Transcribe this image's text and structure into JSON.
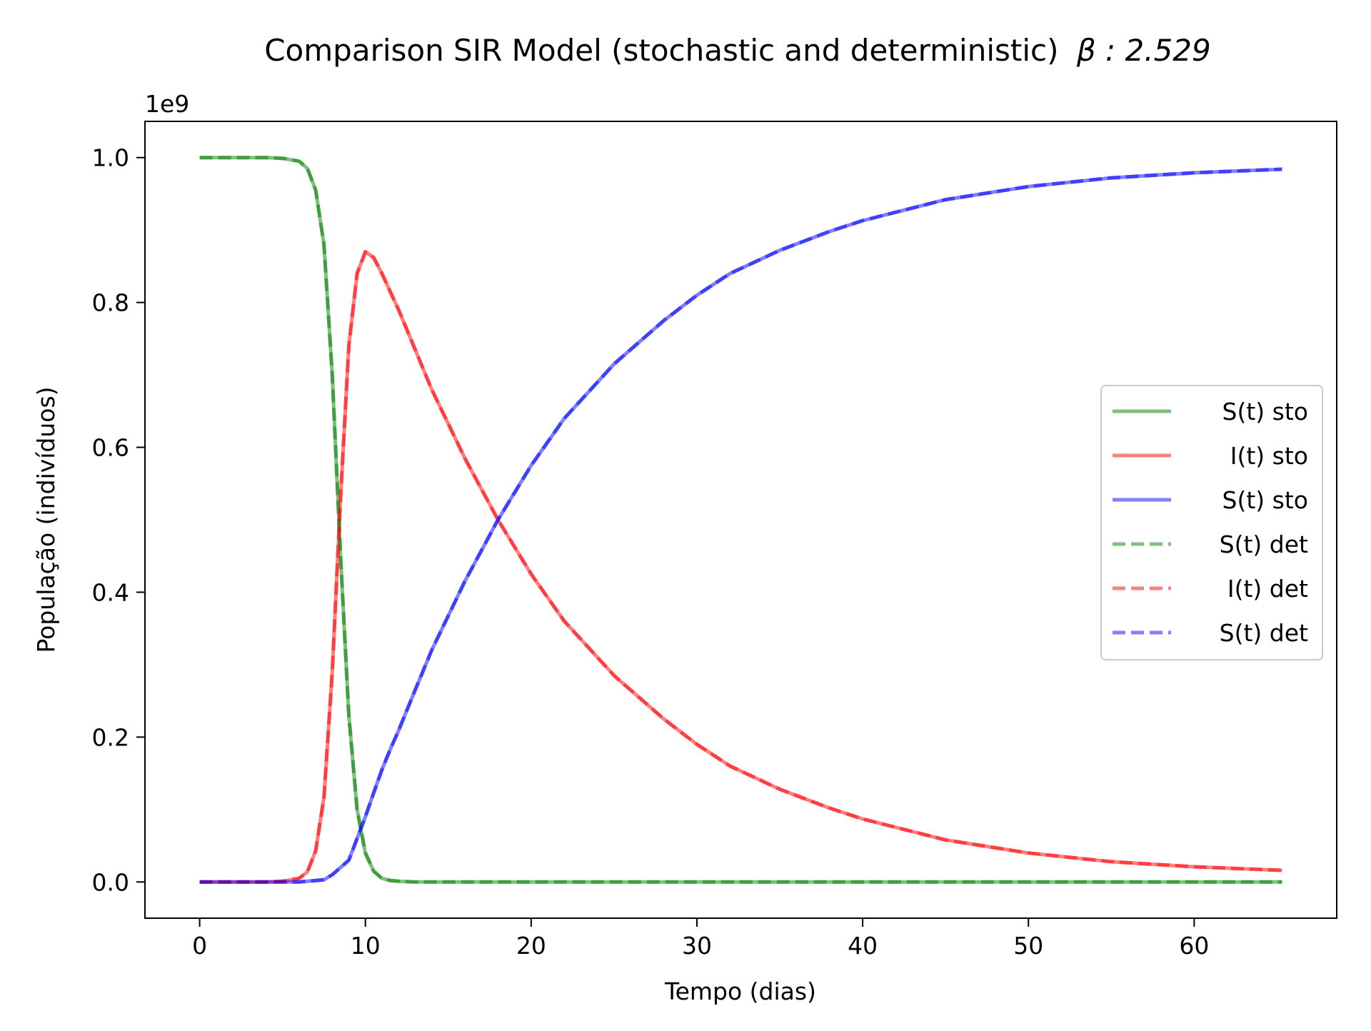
{
  "chart_data": {
    "type": "line",
    "title": "Comparison SIR Model (stochastic and deterministic)",
    "title_math": "β : 2.529",
    "xlabel": "Tempo (dias)",
    "ylabel": "População (indivíduos)",
    "y_offset_label": "1e9",
    "xlim": [
      -3.3,
      68.6
    ],
    "ylim": [
      -0.05,
      1.05
    ],
    "xticks": [
      0,
      10,
      20,
      30,
      40,
      50,
      60
    ],
    "xtick_labels": [
      "0",
      "10",
      "20",
      "30",
      "40",
      "50",
      "60"
    ],
    "yticks": [
      0.0,
      0.2,
      0.4,
      0.6,
      0.8,
      1.0
    ],
    "ytick_labels": [
      "0.0",
      "0.2",
      "0.4",
      "0.6",
      "0.8",
      "1.0"
    ],
    "grid": false,
    "legend_position": "center right",
    "x": [
      0,
      2,
      4,
      5,
      6,
      6.5,
      7,
      7.5,
      8,
      8.5,
      9,
      9.5,
      10,
      10.5,
      11,
      11.5,
      12,
      13,
      14,
      16,
      18,
      20,
      22,
      25,
      28,
      30,
      32,
      35,
      38,
      40,
      45,
      50,
      55,
      60,
      65.3
    ],
    "series": [
      {
        "name": "S(t) sto",
        "color": "#008000",
        "style": "solid",
        "values": [
          1.0,
          1.0,
          1.0,
          0.999,
          0.995,
          0.985,
          0.955,
          0.88,
          0.7,
          0.45,
          0.23,
          0.1,
          0.04,
          0.015,
          0.005,
          0.002,
          0.001,
          0.0,
          0.0,
          0.0,
          0.0,
          0.0,
          0.0,
          0.0,
          0.0,
          0.0,
          0.0,
          0.0,
          0.0,
          0.0,
          0.0,
          0.0,
          0.0,
          0.0,
          0.0
        ]
      },
      {
        "name": "I(t) sto",
        "color": "#ff0000",
        "style": "solid",
        "values": [
          0.0,
          0.0,
          0.0,
          0.001,
          0.005,
          0.014,
          0.043,
          0.117,
          0.29,
          0.53,
          0.74,
          0.84,
          0.87,
          0.862,
          0.84,
          0.815,
          0.79,
          0.735,
          0.68,
          0.585,
          0.5,
          0.425,
          0.36,
          0.285,
          0.225,
          0.19,
          0.16,
          0.128,
          0.102,
          0.087,
          0.058,
          0.04,
          0.028,
          0.021,
          0.016
        ]
      },
      {
        "name": "S(t) sto",
        "color": "#0000ff",
        "style": "solid",
        "values": [
          0.0,
          0.0,
          0.0,
          0.0,
          0.0,
          0.001,
          0.002,
          0.003,
          0.01,
          0.02,
          0.03,
          0.06,
          0.09,
          0.123,
          0.155,
          0.183,
          0.209,
          0.265,
          0.32,
          0.415,
          0.5,
          0.575,
          0.64,
          0.715,
          0.775,
          0.81,
          0.84,
          0.872,
          0.898,
          0.913,
          0.942,
          0.96,
          0.972,
          0.979,
          0.984
        ]
      },
      {
        "name": "S(t) det",
        "color": "#008000",
        "style": "dashed",
        "values": [
          1.0,
          1.0,
          1.0,
          0.999,
          0.995,
          0.985,
          0.955,
          0.88,
          0.7,
          0.45,
          0.23,
          0.1,
          0.04,
          0.015,
          0.005,
          0.002,
          0.001,
          0.0,
          0.0,
          0.0,
          0.0,
          0.0,
          0.0,
          0.0,
          0.0,
          0.0,
          0.0,
          0.0,
          0.0,
          0.0,
          0.0,
          0.0,
          0.0,
          0.0,
          0.0
        ]
      },
      {
        "name": "I(t) det",
        "color": "#ff0000",
        "style": "dashed",
        "values": [
          0.0,
          0.0,
          0.0,
          0.001,
          0.005,
          0.014,
          0.043,
          0.117,
          0.29,
          0.53,
          0.74,
          0.84,
          0.87,
          0.862,
          0.84,
          0.815,
          0.79,
          0.735,
          0.68,
          0.585,
          0.5,
          0.425,
          0.36,
          0.285,
          0.225,
          0.19,
          0.16,
          0.128,
          0.102,
          0.087,
          0.058,
          0.04,
          0.028,
          0.021,
          0.016
        ]
      },
      {
        "name": "S(t) det",
        "color": "#0000ff",
        "style": "dashed",
        "values": [
          0.0,
          0.0,
          0.0,
          0.0,
          0.0,
          0.001,
          0.002,
          0.003,
          0.01,
          0.02,
          0.03,
          0.06,
          0.09,
          0.123,
          0.155,
          0.183,
          0.209,
          0.265,
          0.32,
          0.415,
          0.5,
          0.575,
          0.64,
          0.715,
          0.775,
          0.81,
          0.84,
          0.872,
          0.898,
          0.913,
          0.942,
          0.96,
          0.972,
          0.979,
          0.984
        ]
      }
    ]
  }
}
